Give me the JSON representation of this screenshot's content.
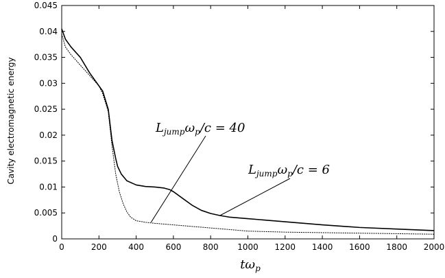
{
  "chart_data": {
    "type": "line",
    "xlabel": "tω",
    "xlabel_sub": "p",
    "ylabel": "Cavity electromagnetic energy",
    "xlim": [
      0,
      2000
    ],
    "ylim": [
      0,
      0.045
    ],
    "x_ticks": [
      0,
      200,
      400,
      600,
      800,
      1000,
      1200,
      1400,
      1600,
      1800,
      2000
    ],
    "y_ticks": [
      0,
      0.005,
      0.01,
      0.015,
      0.02,
      0.025,
      0.03,
      0.035,
      0.04,
      0.045
    ],
    "x_tick_labels": [
      "0",
      "200",
      "400",
      "600",
      "800",
      "1000",
      "1200",
      "1400",
      "1600",
      "1800",
      "2000"
    ],
    "y_tick_labels": [
      "0",
      "0.005",
      "0.01",
      "0.015",
      "0.02",
      "0.025",
      "0.03",
      "0.035",
      "0.04",
      "0.045"
    ],
    "grid": false,
    "series": [
      {
        "name": "L_jump ω_p / c = 40",
        "x": [
          0,
          20,
          50,
          100,
          150,
          200,
          220,
          250,
          270,
          290,
          310,
          330,
          350,
          370,
          400,
          450,
          500,
          600,
          700,
          800,
          900,
          1000,
          1200,
          1400,
          1600,
          1800,
          2000
        ],
        "y": [
          0.0395,
          0.037,
          0.0355,
          0.0335,
          0.0315,
          0.0295,
          0.028,
          0.0245,
          0.018,
          0.0125,
          0.009,
          0.0068,
          0.0052,
          0.0042,
          0.0035,
          0.0032,
          0.003,
          0.0027,
          0.0024,
          0.0021,
          0.0018,
          0.0015,
          0.0013,
          0.0012,
          0.0011,
          0.001,
          0.0009
        ]
      },
      {
        "name": "L_jump ω_p / c = 6",
        "x": [
          0,
          20,
          50,
          100,
          150,
          200,
          220,
          250,
          270,
          290,
          300,
          320,
          350,
          400,
          450,
          500,
          550,
          580,
          600,
          650,
          700,
          750,
          800,
          850,
          900,
          1000,
          1100,
          1200,
          1400,
          1600,
          1800,
          2000
        ],
        "y": [
          0.0405,
          0.0385,
          0.037,
          0.035,
          0.032,
          0.0295,
          0.0285,
          0.025,
          0.019,
          0.0155,
          0.014,
          0.0125,
          0.0112,
          0.0104,
          0.0101,
          0.01,
          0.0098,
          0.0095,
          0.0091,
          0.0078,
          0.0065,
          0.0055,
          0.0049,
          0.0045,
          0.0042,
          0.0039,
          0.0036,
          0.0033,
          0.0027,
          0.0022,
          0.0019,
          0.0016
        ]
      }
    ],
    "annotations": [
      {
        "series": 0,
        "label_main": "L",
        "label_sub": "jump",
        "label_rest": "ω",
        "label_sub2": "p",
        "label_tail": "/c = 40",
        "point_x": 480,
        "point_y": 0.0032
      },
      {
        "series": 1,
        "label_main": "L",
        "label_sub": "jump",
        "label_rest": "ω",
        "label_sub2": "p",
        "label_tail": "/c = 6",
        "point_x": 850,
        "point_y": 0.0045
      }
    ]
  }
}
